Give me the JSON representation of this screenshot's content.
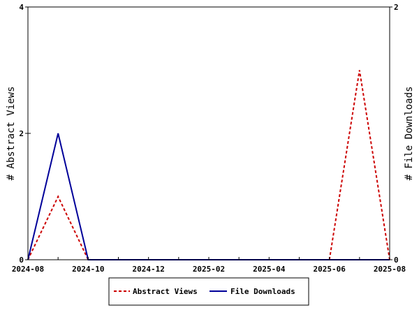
{
  "chart_data": {
    "type": "line",
    "x": [
      "2024-08",
      "2024-09",
      "2024-10",
      "2024-11",
      "2024-12",
      "2025-01",
      "2025-02",
      "2025-03",
      "2025-04",
      "2025-05",
      "2025-06",
      "2025-07",
      "2025-08"
    ],
    "x_tick_labels": [
      "2024-08",
      "2024-10",
      "2024-12",
      "2025-02",
      "2025-04",
      "2025-06",
      "2025-08"
    ],
    "left_axis": {
      "label": "# Abstract Views",
      "ylim": [
        0,
        4
      ],
      "ticks": [
        "0",
        "2",
        "4"
      ]
    },
    "right_axis": {
      "label": "# File Downloads",
      "ylim": [
        0,
        2
      ],
      "ticks": [
        "0",
        "2"
      ]
    },
    "series": [
      {
        "name": "Abstract Views",
        "axis": "left",
        "color": "#cc0000",
        "style": "dashed",
        "values": [
          0,
          1,
          0,
          0,
          0,
          0,
          0,
          0,
          0,
          0,
          0,
          3,
          0
        ]
      },
      {
        "name": "File Downloads",
        "axis": "right",
        "color": "#000099",
        "style": "solid",
        "values": [
          0,
          1,
          0,
          0,
          0,
          0,
          0,
          0,
          0,
          0,
          0,
          0,
          0
        ]
      }
    ],
    "grid": false,
    "legend_position": "bottom"
  }
}
